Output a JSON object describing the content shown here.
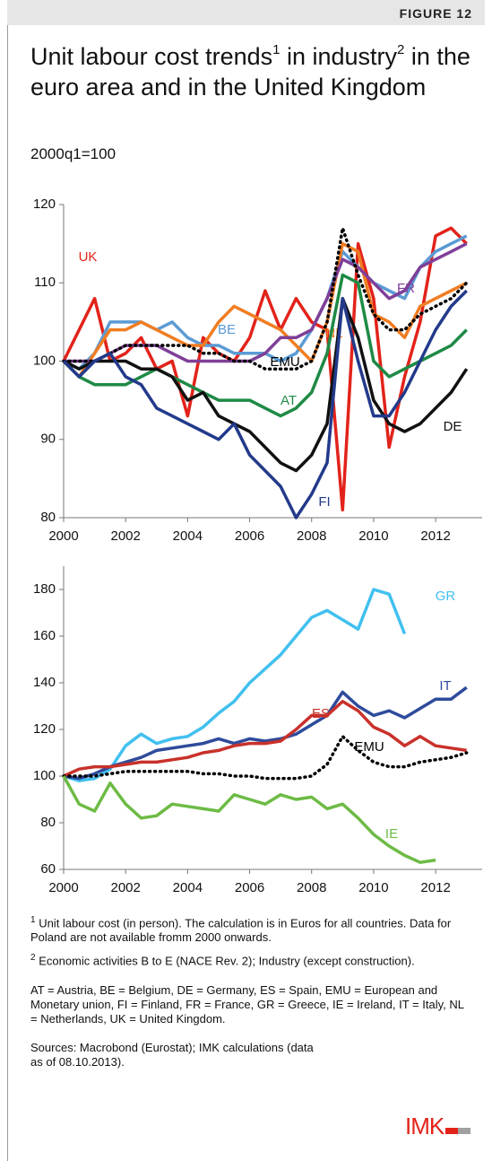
{
  "header": {
    "label": "FIGURE 12",
    "title": [
      "Unit labour cost trends",
      "1",
      " in industry",
      "2",
      " in the euro area and in the United Kingdom"
    ],
    "subtitle": "2000q1=100"
  },
  "chart_data": [
    {
      "type": "line",
      "x": [
        2000,
        2000.5,
        2001,
        2001.5,
        2002,
        2002.5,
        2003,
        2003.5,
        2004,
        2004.5,
        2005,
        2005.5,
        2006,
        2006.5,
        2007,
        2007.5,
        2008,
        2008.5,
        2009,
        2009.5,
        2010,
        2010.5,
        2011,
        2011.5,
        2012,
        2012.5,
        2013
      ],
      "xlim": [
        2000,
        2013.5
      ],
      "xticks": [
        2000,
        2002,
        2004,
        2006,
        2008,
        2010,
        2012
      ],
      "ylim": [
        80,
        120
      ],
      "yticks": [
        80,
        90,
        100,
        110,
        120
      ],
      "series": [
        {
          "name": "UK",
          "color": "#e2231a",
          "values": [
            100,
            104,
            108,
            100,
            101,
            103,
            99,
            100,
            93,
            103,
            101,
            100,
            103,
            109,
            104,
            108,
            105,
            104,
            81,
            115,
            108,
            89,
            98,
            105,
            116,
            117,
            115
          ]
        },
        {
          "name": "BE",
          "color": "#5b9bd5",
          "values": [
            100,
            99,
            101,
            105,
            105,
            105,
            104,
            105,
            103,
            102,
            102,
            101,
            101,
            101,
            100,
            101,
            104,
            108,
            114,
            112,
            110,
            109,
            108,
            112,
            114,
            115,
            116
          ]
        },
        {
          "name": "NL",
          "color": "#f07d22",
          "values": [
            100,
            98,
            101,
            104,
            104,
            105,
            104,
            103,
            102,
            102,
            105,
            107,
            106,
            105,
            104,
            102,
            100,
            105,
            115,
            114,
            106,
            105,
            103,
            107,
            108,
            109,
            110
          ]
        },
        {
          "name": "FR",
          "color": "#7f3f98",
          "values": [
            100,
            100,
            100,
            101,
            102,
            102,
            102,
            101,
            100,
            100,
            100,
            100,
            100,
            101,
            103,
            103,
            104,
            108,
            113,
            112,
            110,
            108,
            109,
            112,
            113,
            114,
            115
          ]
        },
        {
          "name": "EMU",
          "color": "#000000",
          "style": "dotted",
          "values": [
            100,
            100,
            100,
            101,
            102,
            102,
            102,
            102,
            102,
            101,
            101,
            100,
            100,
            99,
            99,
            99,
            100,
            105,
            117,
            111,
            106,
            104,
            104,
            106,
            107,
            108,
            110
          ]
        },
        {
          "name": "AT",
          "color": "#1e8a45",
          "values": [
            100,
            98,
            97,
            97,
            97,
            98,
            99,
            98,
            97,
            96,
            95,
            95,
            95,
            94,
            93,
            94,
            96,
            101,
            111,
            110,
            100,
            98,
            99,
            100,
            101,
            102,
            104
          ]
        },
        {
          "name": "DE",
          "color": "#111111",
          "values": [
            100,
            99,
            100,
            100,
            100,
            99,
            99,
            98,
            95,
            96,
            93,
            92,
            91,
            89,
            87,
            86,
            88,
            92,
            108,
            103,
            95,
            92,
            91,
            92,
            94,
            96,
            99
          ]
        },
        {
          "name": "FI",
          "color": "#233a8b",
          "values": [
            100,
            98,
            100,
            101,
            98,
            97,
            94,
            93,
            92,
            91,
            90,
            92,
            88,
            86,
            84,
            80,
            83,
            87,
            108,
            100,
            93,
            93,
            96,
            100,
            104,
            107,
            109
          ]
        }
      ]
    },
    {
      "type": "line",
      "x": [
        2000,
        2000.5,
        2001,
        2001.5,
        2002,
        2002.5,
        2003,
        2003.5,
        2004,
        2004.5,
        2005,
        2005.5,
        2006,
        2006.5,
        2007,
        2007.5,
        2008,
        2008.5,
        2009,
        2009.5,
        2010,
        2010.5,
        2011,
        2011.5,
        2012,
        2012.5,
        2013
      ],
      "xlim": [
        2000,
        2013.5
      ],
      "xticks": [
        2000,
        2002,
        2004,
        2006,
        2008,
        2010,
        2012
      ],
      "ylim": [
        60,
        190
      ],
      "yticks": [
        60,
        80,
        100,
        120,
        140,
        160,
        180
      ],
      "series": [
        {
          "name": "GR",
          "color": "#41c0ef",
          "values": [
            100,
            98,
            99,
            103,
            113,
            118,
            114,
            116,
            117,
            121,
            127,
            132,
            140,
            146,
            152,
            160,
            168,
            171,
            167,
            163,
            180,
            178,
            161,
            null,
            null,
            null,
            null
          ]
        },
        {
          "name": "IT",
          "color": "#2e4b9b",
          "values": [
            100,
            99,
            101,
            104,
            106,
            108,
            111,
            112,
            113,
            114,
            116,
            114,
            116,
            115,
            116,
            118,
            122,
            126,
            136,
            130,
            126,
            128,
            125,
            129,
            133,
            133,
            138
          ]
        },
        {
          "name": "ES",
          "color": "#c8312a",
          "values": [
            100,
            103,
            104,
            104,
            105,
            106,
            106,
            107,
            108,
            110,
            111,
            113,
            114,
            114,
            115,
            120,
            126,
            126,
            132,
            128,
            121,
            118,
            113,
            117,
            113,
            112,
            111
          ]
        },
        {
          "name": "EMU",
          "color": "#000000",
          "style": "dotted",
          "values": [
            100,
            100,
            100,
            101,
            102,
            102,
            102,
            102,
            102,
            101,
            101,
            100,
            100,
            99,
            99,
            99,
            100,
            105,
            117,
            111,
            106,
            104,
            104,
            106,
            107,
            108,
            110
          ]
        },
        {
          "name": "IE",
          "color": "#6dbb45",
          "values": [
            100,
            88,
            85,
            97,
            88,
            82,
            83,
            88,
            87,
            86,
            85,
            92,
            90,
            88,
            92,
            90,
            91,
            86,
            88,
            82,
            75,
            70,
            66,
            63,
            64,
            null,
            null
          ]
        }
      ]
    }
  ],
  "notes": [
    {
      "mark": "1",
      "text": "Unit labour cost (in person). The calculation is in Euros for all countries. Data for Poland are not available fromm 2000 onwards."
    },
    {
      "mark": "2",
      "text": "Economic activities B to E (NACE Rev. 2);  Industry (except construction)."
    }
  ],
  "abbreviations": "AT = Austria, BE = Belgium, DE = Germany, ES = Spain, EMU = European and Monetary union, FI = Finland, FR = France, GR = Greece, IE = Ireland, IT = Italy, NL = Netherlands, UK = United Kingdom.",
  "sources": "Sources: Macrobond (Eurostat); IMK calculations (data as of 08.10.2013).",
  "logo": "IMK"
}
